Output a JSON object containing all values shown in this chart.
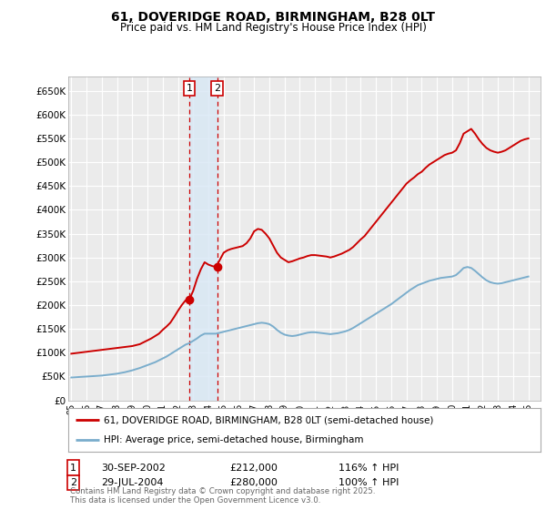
{
  "title": "61, DOVERIDGE ROAD, BIRMINGHAM, B28 0LT",
  "subtitle": "Price paid vs. HM Land Registry's House Price Index (HPI)",
  "title_fontsize": 10,
  "subtitle_fontsize": 8.5,
  "bg_color": "#ffffff",
  "plot_bg_color": "#ebebeb",
  "grid_color": "#ffffff",
  "red_color": "#cc0000",
  "blue_color": "#7aadcc",
  "shade_color": "#d8e8f5",
  "legend_label_red": "61, DOVERIDGE ROAD, BIRMINGHAM, B28 0LT (semi-detached house)",
  "legend_label_blue": "HPI: Average price, semi-detached house, Birmingham",
  "footer": "Contains HM Land Registry data © Crown copyright and database right 2025.\nThis data is licensed under the Open Government Licence v3.0.",
  "sale1_date": "30-SEP-2002",
  "sale1_price": "£212,000",
  "sale1_hpi": "116% ↑ HPI",
  "sale2_date": "29-JUL-2004",
  "sale2_price": "£280,000",
  "sale2_hpi": "100% ↑ HPI",
  "ylim": [
    0,
    680000
  ],
  "yticks": [
    0,
    50000,
    100000,
    150000,
    200000,
    250000,
    300000,
    350000,
    400000,
    450000,
    500000,
    550000,
    600000,
    650000
  ],
  "ytick_labels": [
    "£0",
    "£50K",
    "£100K",
    "£150K",
    "£200K",
    "£250K",
    "£300K",
    "£350K",
    "£400K",
    "£450K",
    "£500K",
    "£550K",
    "£600K",
    "£650K"
  ],
  "sale1_year": 2002.75,
  "sale1_value": 212000,
  "sale2_year": 2004.58,
  "sale2_value": 280000,
  "shade_x1": 2002.75,
  "shade_x2": 2004.58,
  "xlim_left": 1994.8,
  "xlim_right": 2025.8,
  "red_x": [
    1995.0,
    1995.25,
    1995.5,
    1995.75,
    1996.0,
    1996.25,
    1996.5,
    1996.75,
    1997.0,
    1997.25,
    1997.5,
    1997.75,
    1998.0,
    1998.25,
    1998.5,
    1998.75,
    1999.0,
    1999.25,
    1999.5,
    1999.75,
    2000.0,
    2000.25,
    2000.5,
    2000.75,
    2001.0,
    2001.25,
    2001.5,
    2001.75,
    2002.0,
    2002.25,
    2002.5,
    2002.75,
    2003.0,
    2003.25,
    2003.5,
    2003.75,
    2004.0,
    2004.25,
    2004.5,
    2004.75,
    2005.0,
    2005.25,
    2005.5,
    2005.75,
    2006.0,
    2006.25,
    2006.5,
    2006.75,
    2007.0,
    2007.25,
    2007.5,
    2007.75,
    2008.0,
    2008.25,
    2008.5,
    2008.75,
    2009.0,
    2009.25,
    2009.5,
    2009.75,
    2010.0,
    2010.25,
    2010.5,
    2010.75,
    2011.0,
    2011.25,
    2011.5,
    2011.75,
    2012.0,
    2012.25,
    2012.5,
    2012.75,
    2013.0,
    2013.25,
    2013.5,
    2013.75,
    2014.0,
    2014.25,
    2014.5,
    2014.75,
    2015.0,
    2015.25,
    2015.5,
    2015.75,
    2016.0,
    2016.25,
    2016.5,
    2016.75,
    2017.0,
    2017.25,
    2017.5,
    2017.75,
    2018.0,
    2018.25,
    2018.5,
    2018.75,
    2019.0,
    2019.25,
    2019.5,
    2019.75,
    2020.0,
    2020.25,
    2020.5,
    2020.75,
    2021.0,
    2021.25,
    2021.5,
    2021.75,
    2022.0,
    2022.25,
    2022.5,
    2022.75,
    2023.0,
    2023.25,
    2023.5,
    2023.75,
    2024.0,
    2024.25,
    2024.5,
    2024.75,
    2025.0
  ],
  "red_y": [
    98000,
    99000,
    100000,
    101000,
    102000,
    103000,
    104000,
    105000,
    106000,
    107000,
    108000,
    109000,
    110000,
    111000,
    112000,
    113000,
    114000,
    116000,
    118000,
    122000,
    126000,
    130000,
    135000,
    140000,
    148000,
    155000,
    163000,
    175000,
    188000,
    200000,
    210000,
    212000,
    230000,
    255000,
    275000,
    290000,
    285000,
    282000,
    280000,
    295000,
    310000,
    315000,
    318000,
    320000,
    322000,
    324000,
    330000,
    340000,
    355000,
    360000,
    358000,
    350000,
    340000,
    325000,
    310000,
    300000,
    295000,
    290000,
    292000,
    295000,
    298000,
    300000,
    303000,
    305000,
    305000,
    304000,
    303000,
    302000,
    300000,
    302000,
    305000,
    308000,
    312000,
    316000,
    322000,
    330000,
    338000,
    345000,
    355000,
    365000,
    375000,
    385000,
    395000,
    405000,
    415000,
    425000,
    435000,
    445000,
    455000,
    462000,
    468000,
    475000,
    480000,
    488000,
    495000,
    500000,
    505000,
    510000,
    515000,
    518000,
    520000,
    525000,
    540000,
    560000,
    565000,
    570000,
    560000,
    548000,
    538000,
    530000,
    525000,
    522000,
    520000,
    522000,
    525000,
    530000,
    535000,
    540000,
    545000,
    548000,
    550000
  ],
  "blue_x": [
    1995.0,
    1995.25,
    1995.5,
    1995.75,
    1996.0,
    1996.25,
    1996.5,
    1996.75,
    1997.0,
    1997.25,
    1997.5,
    1997.75,
    1998.0,
    1998.25,
    1998.5,
    1998.75,
    1999.0,
    1999.25,
    1999.5,
    1999.75,
    2000.0,
    2000.25,
    2000.5,
    2000.75,
    2001.0,
    2001.25,
    2001.5,
    2001.75,
    2002.0,
    2002.25,
    2002.5,
    2002.75,
    2003.0,
    2003.25,
    2003.5,
    2003.75,
    2004.0,
    2004.25,
    2004.5,
    2004.75,
    2005.0,
    2005.25,
    2005.5,
    2005.75,
    2006.0,
    2006.25,
    2006.5,
    2006.75,
    2007.0,
    2007.25,
    2007.5,
    2007.75,
    2008.0,
    2008.25,
    2008.5,
    2008.75,
    2009.0,
    2009.25,
    2009.5,
    2009.75,
    2010.0,
    2010.25,
    2010.5,
    2010.75,
    2011.0,
    2011.25,
    2011.5,
    2011.75,
    2012.0,
    2012.25,
    2012.5,
    2012.75,
    2013.0,
    2013.25,
    2013.5,
    2013.75,
    2014.0,
    2014.25,
    2014.5,
    2014.75,
    2015.0,
    2015.25,
    2015.5,
    2015.75,
    2016.0,
    2016.25,
    2016.5,
    2016.75,
    2017.0,
    2017.25,
    2017.5,
    2017.75,
    2018.0,
    2018.25,
    2018.5,
    2018.75,
    2019.0,
    2019.25,
    2019.5,
    2019.75,
    2020.0,
    2020.25,
    2020.5,
    2020.75,
    2021.0,
    2021.25,
    2021.5,
    2021.75,
    2022.0,
    2022.25,
    2022.5,
    2022.75,
    2023.0,
    2023.25,
    2023.5,
    2023.75,
    2024.0,
    2024.25,
    2024.5,
    2024.75,
    2025.0
  ],
  "blue_y": [
    48000,
    48500,
    49000,
    49500,
    50000,
    50500,
    51000,
    51500,
    52000,
    53000,
    54000,
    55000,
    56000,
    57500,
    59000,
    61000,
    63000,
    65500,
    68000,
    71000,
    74000,
    77000,
    80000,
    84000,
    88000,
    92000,
    97000,
    102000,
    107000,
    112000,
    117000,
    120000,
    125000,
    130000,
    136000,
    140000,
    140000,
    140000,
    140000,
    142000,
    144000,
    146000,
    148000,
    150000,
    152000,
    154000,
    156000,
    158000,
    160000,
    162000,
    163000,
    162000,
    160000,
    155000,
    148000,
    142000,
    138000,
    136000,
    135000,
    136000,
    138000,
    140000,
    142000,
    143000,
    143000,
    142000,
    141000,
    140000,
    139000,
    140000,
    141000,
    143000,
    145000,
    148000,
    152000,
    157000,
    162000,
    167000,
    172000,
    177000,
    182000,
    187000,
    192000,
    197000,
    202000,
    208000,
    214000,
    220000,
    226000,
    232000,
    237000,
    242000,
    245000,
    248000,
    251000,
    253000,
    255000,
    257000,
    258000,
    259000,
    260000,
    263000,
    270000,
    278000,
    280000,
    278000,
    272000,
    265000,
    258000,
    252000,
    248000,
    246000,
    245000,
    246000,
    248000,
    250000,
    252000,
    254000,
    256000,
    258000,
    260000
  ]
}
